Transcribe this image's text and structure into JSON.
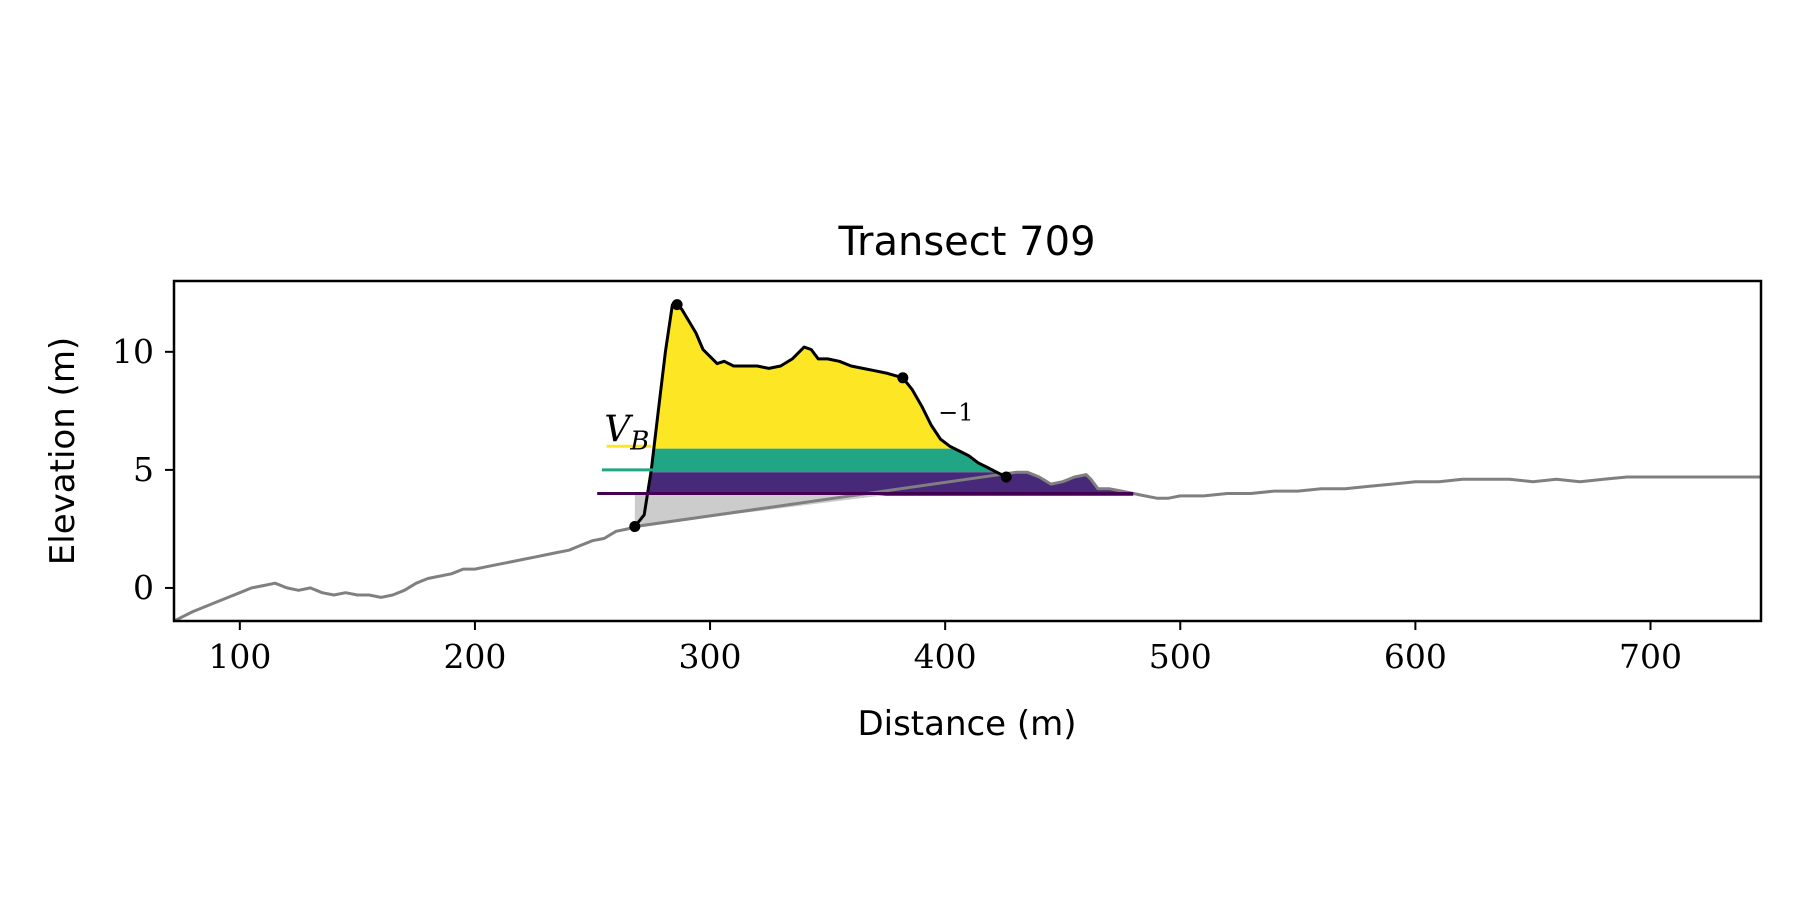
{
  "chart_data": {
    "type": "line",
    "title": "Transect 709",
    "xlabel": "Distance (m)",
    "ylabel": "Elevation (m)",
    "xlim": [
      72,
      747
    ],
    "ylim": [
      -1.4,
      13.0
    ],
    "xticks": [
      100,
      200,
      300,
      400,
      500,
      600,
      700
    ],
    "xtick_labels": [
      "100",
      "200",
      "300",
      "400",
      "500",
      "600",
      "700"
    ],
    "yticks": [
      0,
      5,
      10
    ],
    "ytick_labels": [
      "0",
      "5",
      "10"
    ],
    "grid": false,
    "annotations": [
      {
        "text": "V",
        "sub": "B",
        "x": 255,
        "y": 6.2
      },
      {
        "text": "−1",
        "x": 397,
        "y": 7.1
      }
    ],
    "series": [
      {
        "role": "background-profile",
        "color": "#808080",
        "x": [
          72,
          80,
          90,
          95,
          100,
          105,
          110,
          115,
          120,
          125,
          130,
          135,
          140,
          145,
          150,
          155,
          160,
          165,
          170,
          175,
          180,
          185,
          190,
          195,
          200,
          205,
          210,
          215,
          220,
          225,
          230,
          235,
          240,
          245,
          250,
          255,
          260,
          265,
          268,
          430,
          435,
          440,
          445,
          450,
          455,
          460,
          462,
          465,
          470,
          475,
          480,
          485,
          490,
          495,
          500,
          510,
          520,
          530,
          540,
          550,
          560,
          570,
          580,
          590,
          600,
          610,
          620,
          630,
          640,
          650,
          660,
          670,
          680,
          690,
          700,
          710,
          720,
          730,
          747
        ],
        "y": [
          -1.4,
          -1.0,
          -0.6,
          -0.4,
          -0.2,
          0.0,
          0.1,
          0.2,
          0.0,
          -0.1,
          0.0,
          -0.2,
          -0.3,
          -0.2,
          -0.3,
          -0.3,
          -0.4,
          -0.3,
          -0.1,
          0.2,
          0.4,
          0.5,
          0.6,
          0.8,
          0.8,
          0.9,
          1.0,
          1.1,
          1.2,
          1.3,
          1.4,
          1.5,
          1.6,
          1.8,
          2.0,
          2.1,
          2.4,
          2.5,
          2.6,
          4.9,
          4.9,
          4.7,
          4.4,
          4.5,
          4.7,
          4.8,
          4.6,
          4.2,
          4.2,
          4.1,
          4.0,
          3.9,
          3.8,
          3.8,
          3.9,
          3.9,
          4.0,
          4.0,
          4.1,
          4.1,
          4.2,
          4.2,
          4.3,
          4.4,
          4.5,
          4.5,
          4.6,
          4.6,
          4.6,
          4.5,
          4.6,
          4.5,
          4.6,
          4.7,
          4.7,
          4.7,
          4.7,
          4.7,
          4.7
        ]
      },
      {
        "role": "dune-profile",
        "color": "#000000",
        "x": [
          268,
          272,
          275,
          278,
          281,
          284,
          286,
          288,
          291,
          294,
          297,
          300,
          303,
          306,
          310,
          315,
          320,
          325,
          330,
          335,
          340,
          343,
          346,
          350,
          355,
          360,
          365,
          370,
          375,
          382,
          386,
          390,
          394,
          398,
          402,
          406,
          410,
          414,
          418,
          422,
          426
        ],
        "y": [
          2.6,
          3.1,
          5.0,
          7.5,
          10.0,
          12.0,
          12.0,
          11.8,
          11.3,
          10.8,
          10.1,
          9.8,
          9.5,
          9.6,
          9.4,
          9.4,
          9.4,
          9.3,
          9.4,
          9.7,
          10.2,
          10.1,
          9.7,
          9.7,
          9.6,
          9.4,
          9.3,
          9.2,
          9.1,
          8.9,
          8.4,
          7.7,
          6.9,
          6.3,
          6.0,
          5.8,
          5.6,
          5.3,
          5.1,
          4.9,
          4.7
        ]
      }
    ],
    "markers": [
      {
        "x": 268,
        "y": 2.6
      },
      {
        "x": 286,
        "y": 12.0
      },
      {
        "x": 382,
        "y": 8.9
      },
      {
        "x": 426,
        "y": 4.7
      }
    ],
    "bands": [
      {
        "color": "#fde725",
        "y_low": 5.9,
        "y_high": 13.0
      },
      {
        "color": "#21a685",
        "y_low": 4.9,
        "y_high": 5.9
      },
      {
        "color": "#482878",
        "y_low": 3.9,
        "y_high": 4.9
      }
    ],
    "water_lines": [
      {
        "color": "#fde725",
        "y": 6.0,
        "x_start": 256,
        "x_end": 275
      },
      {
        "color": "#21a685",
        "y": 5.0,
        "x_start": 254,
        "x_end": 276
      },
      {
        "color": "#440154",
        "y": 4.0,
        "x_start": 252,
        "x_end": 480
      }
    ],
    "base_wedge": {
      "color": "#cccccc",
      "x": [
        268,
        380,
        268
      ],
      "y": [
        2.6,
        4.0,
        4.0
      ]
    }
  }
}
